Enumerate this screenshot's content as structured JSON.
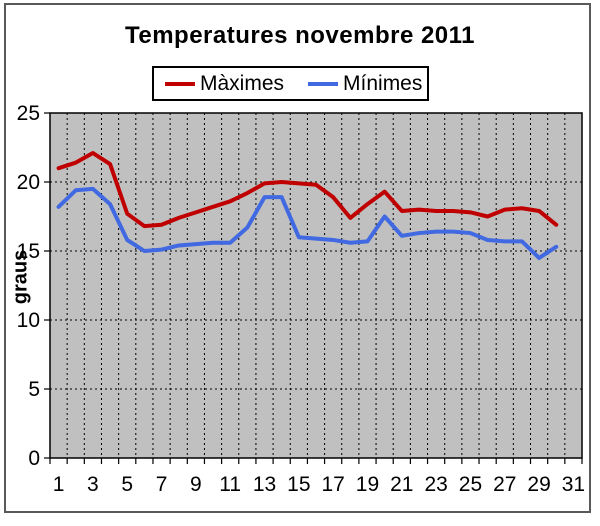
{
  "chart_data": {
    "type": "line",
    "title": "Temperatures novembre 2011",
    "ylabel": "graus",
    "xlabel": "",
    "ylim": [
      0,
      25
    ],
    "categories_count": 31,
    "grid": "dashed vertical gridline per day, dashed horizontal gridline every 5 graus",
    "plot_bg": "#C0C0C0",
    "legend_position": "top-center, boxed",
    "x_axis_ticks": [
      "1",
      "3",
      "5",
      "7",
      "9",
      "11",
      "13",
      "15",
      "17",
      "19",
      "21",
      "23",
      "25",
      "27",
      "29",
      "31"
    ],
    "y_axis_ticks": [
      0,
      5,
      10,
      15,
      20,
      25
    ],
    "x": [
      1,
      2,
      3,
      4,
      5,
      6,
      7,
      8,
      9,
      10,
      11,
      12,
      13,
      14,
      15,
      16,
      17,
      18,
      19,
      20,
      21,
      22,
      23,
      24,
      25,
      26,
      27,
      28,
      29,
      30
    ],
    "series": [
      {
        "name": "Màximes",
        "color": "#C00000",
        "values": [
          21.0,
          21.4,
          22.1,
          21.3,
          17.7,
          16.8,
          16.9,
          17.4,
          17.8,
          18.2,
          18.6,
          19.2,
          19.9,
          20.0,
          19.9,
          19.8,
          18.9,
          17.4,
          18.4,
          19.3,
          17.9,
          18.0,
          17.9,
          17.9,
          17.8,
          17.5,
          18.0,
          18.1,
          17.9,
          16.9
        ]
      },
      {
        "name": "Mínimes",
        "color": "#4169E1",
        "values": [
          18.2,
          19.4,
          19.5,
          18.4,
          15.8,
          15.0,
          15.1,
          15.4,
          15.5,
          15.6,
          15.6,
          16.7,
          18.9,
          18.9,
          16.0,
          15.9,
          15.8,
          15.6,
          15.7,
          17.5,
          16.1,
          16.3,
          16.4,
          16.4,
          16.3,
          15.8,
          15.7,
          15.7,
          14.5,
          15.3
        ]
      }
    ]
  }
}
